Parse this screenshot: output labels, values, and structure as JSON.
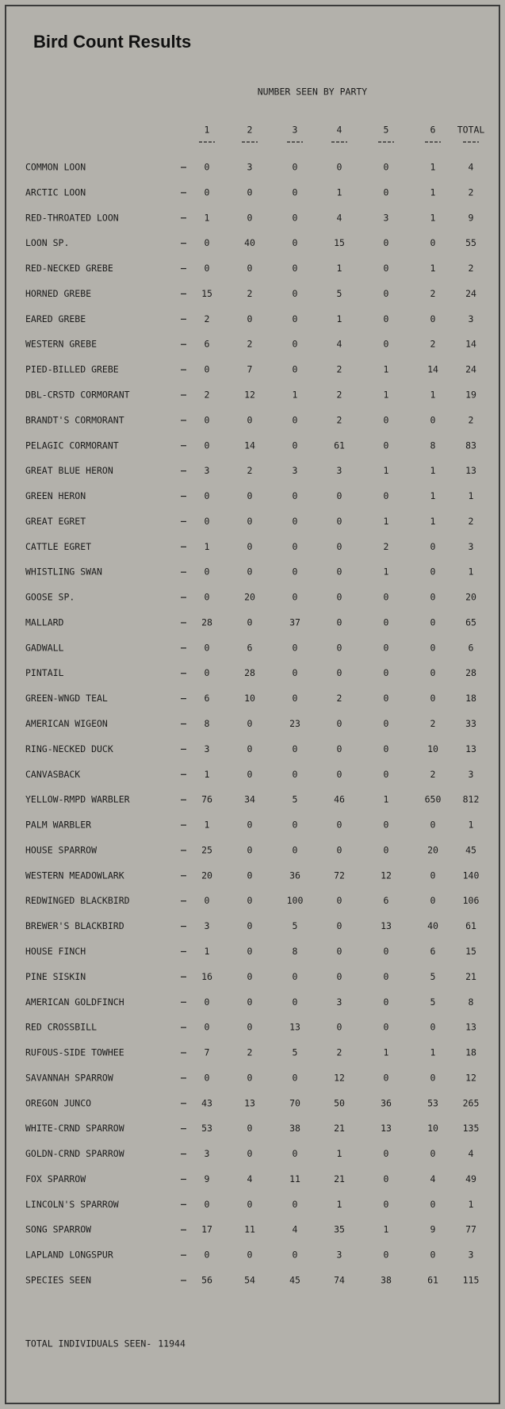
{
  "header": {
    "title": "Bird Count Results",
    "subtitle": "NUMBER SEEN BY PARTY"
  },
  "table": {
    "columns": [
      "1",
      "2",
      "3",
      "4",
      "5",
      "6",
      "TOTAL"
    ],
    "rows": [
      [
        "COMMON LOON",
        0,
        3,
        0,
        0,
        0,
        1,
        4
      ],
      [
        "ARCTIC LOON",
        0,
        0,
        0,
        1,
        0,
        1,
        2
      ],
      [
        "RED-THROATED LOON",
        1,
        0,
        0,
        4,
        3,
        1,
        9
      ],
      [
        "LOON SP.",
        0,
        40,
        0,
        15,
        0,
        0,
        55
      ],
      [
        "RED-NECKED GREBE",
        0,
        0,
        0,
        1,
        0,
        1,
        2
      ],
      [
        "HORNED GREBE",
        15,
        2,
        0,
        5,
        0,
        2,
        24
      ],
      [
        "EARED GREBE",
        2,
        0,
        0,
        1,
        0,
        0,
        3
      ],
      [
        "WESTERN GREBE",
        6,
        2,
        0,
        4,
        0,
        2,
        14
      ],
      [
        "PIED-BILLED GREBE",
        0,
        7,
        0,
        2,
        1,
        14,
        24
      ],
      [
        "DBL-CRSTD CORMORANT",
        2,
        12,
        1,
        2,
        1,
        1,
        19
      ],
      [
        "BRANDT'S CORMORANT",
        0,
        0,
        0,
        2,
        0,
        0,
        2
      ],
      [
        "PELAGIC CORMORANT",
        0,
        14,
        0,
        61,
        0,
        8,
        83
      ],
      [
        "GREAT BLUE HERON",
        3,
        2,
        3,
        3,
        1,
        1,
        13
      ],
      [
        "GREEN HERON",
        0,
        0,
        0,
        0,
        0,
        1,
        1
      ],
      [
        "GREAT EGRET",
        0,
        0,
        0,
        0,
        1,
        1,
        2
      ],
      [
        "CATTLE EGRET",
        1,
        0,
        0,
        0,
        2,
        0,
        3
      ],
      [
        "WHISTLING SWAN",
        0,
        0,
        0,
        0,
        1,
        0,
        1
      ],
      [
        "GOOSE SP.",
        0,
        20,
        0,
        0,
        0,
        0,
        20
      ],
      [
        "MALLARD",
        28,
        0,
        37,
        0,
        0,
        0,
        65
      ],
      [
        "GADWALL",
        0,
        6,
        0,
        0,
        0,
        0,
        6
      ],
      [
        "PINTAIL",
        0,
        28,
        0,
        0,
        0,
        0,
        28
      ],
      [
        "GREEN-WNGD TEAL",
        6,
        10,
        0,
        2,
        0,
        0,
        18
      ],
      [
        "AMERICAN WIGEON",
        8,
        0,
        23,
        0,
        0,
        2,
        33
      ],
      [
        "RING-NECKED DUCK",
        3,
        0,
        0,
        0,
        0,
        10,
        13
      ],
      [
        "CANVASBACK",
        1,
        0,
        0,
        0,
        0,
        2,
        3
      ],
      [
        "YELLOW-RMPD WARBLER",
        76,
        34,
        5,
        46,
        1,
        650,
        812
      ],
      [
        "PALM WARBLER",
        1,
        0,
        0,
        0,
        0,
        0,
        1
      ],
      [
        "HOUSE SPARROW",
        25,
        0,
        0,
        0,
        0,
        20,
        45
      ],
      [
        "WESTERN MEADOWLARK",
        20,
        0,
        36,
        72,
        12,
        0,
        140
      ],
      [
        "REDWINGED BLACKBIRD",
        0,
        0,
        100,
        0,
        6,
        0,
        106
      ],
      [
        "BREWER'S BLACKBIRD",
        3,
        0,
        5,
        0,
        13,
        40,
        61
      ],
      [
        "HOUSE FINCH",
        1,
        0,
        8,
        0,
        0,
        6,
        15
      ],
      [
        "PINE SISKIN",
        16,
        0,
        0,
        0,
        0,
        5,
        21
      ],
      [
        "AMERICAN GOLDFINCH",
        0,
        0,
        0,
        3,
        0,
        5,
        8
      ],
      [
        "RED CROSSBILL",
        0,
        0,
        13,
        0,
        0,
        0,
        13
      ],
      [
        "RUFOUS-SIDE TOWHEE",
        7,
        2,
        5,
        2,
        1,
        1,
        18
      ],
      [
        "SAVANNAH SPARROW",
        0,
        0,
        0,
        12,
        0,
        0,
        12
      ],
      [
        "OREGON JUNCO",
        43,
        13,
        70,
        50,
        36,
        53,
        265
      ],
      [
        "WHITE-CRND SPARROW",
        53,
        0,
        38,
        21,
        13,
        10,
        135
      ],
      [
        "GOLDN-CRND SPARROW",
        3,
        0,
        0,
        1,
        0,
        0,
        4
      ],
      [
        "FOX SPARROW",
        9,
        4,
        11,
        21,
        0,
        4,
        49
      ],
      [
        "LINCOLN'S SPARROW",
        0,
        0,
        0,
        1,
        0,
        0,
        1
      ],
      [
        "SONG SPARROW",
        17,
        11,
        4,
        35,
        1,
        9,
        77
      ],
      [
        "LAPLAND LONGSPUR",
        0,
        0,
        0,
        3,
        0,
        0,
        3
      ],
      [
        "SPECIES SEEN",
        56,
        54,
        45,
        74,
        38,
        61,
        115
      ]
    ]
  },
  "footer": {
    "label": "TOTAL INDIVIDUALS SEEN-",
    "value": 11944
  }
}
